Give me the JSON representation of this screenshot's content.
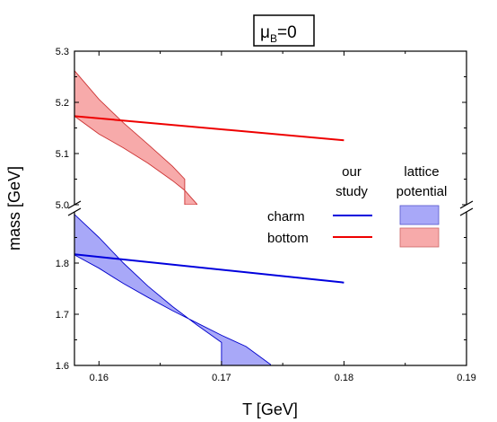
{
  "chart_data": {
    "type": "line",
    "title": "μ",
    "title_subscript": "B",
    "title_suffix": "=0",
    "xlabel": "T [GeV]",
    "ylabel": "mass [GeV]",
    "xlim": [
      0.158,
      0.19
    ],
    "x_ticks": [
      "0.16",
      "0.17",
      "0.18",
      "0.19"
    ],
    "x_tick_values": [
      0.16,
      0.17,
      0.18,
      0.19
    ],
    "ylim_upper": [
      5.0,
      5.3
    ],
    "ylim_lower": [
      1.6,
      1.9
    ],
    "axis_break": true,
    "y_ticks_upper": [
      "5.0",
      "5.1",
      "5.2",
      "5.3"
    ],
    "y_tick_values_upper": [
      5.0,
      5.1,
      5.2,
      5.3
    ],
    "y_ticks_lower": [
      "1.6",
      "1.7",
      "1.8"
    ],
    "y_tick_values_lower": [
      1.6,
      1.7,
      1.8
    ],
    "legend": {
      "header_col1": [
        "our",
        "study"
      ],
      "header_col2": [
        "lattice",
        "potential"
      ],
      "rows": [
        "charm",
        "bottom"
      ]
    },
    "series": [
      {
        "name": "charm",
        "source": "our study",
        "kind": "line",
        "color": "#0000dd",
        "x": [
          0.158,
          0.18
        ],
        "y": [
          1.817,
          1.762
        ]
      },
      {
        "name": "bottom",
        "source": "our study",
        "kind": "line",
        "color": "#ee0000",
        "x": [
          0.158,
          0.18
        ],
        "y": [
          5.173,
          5.126
        ]
      },
      {
        "name": "charm",
        "source": "lattice potential",
        "kind": "band",
        "color": "#0000cc",
        "fill": "#a8a8f8",
        "x": [
          0.158,
          0.16,
          0.162,
          0.164,
          0.166,
          0.168,
          0.17,
          0.172,
          0.174
        ],
        "y_upper": [
          1.895,
          1.85,
          1.8,
          1.755,
          1.715,
          1.679,
          1.645,
          null,
          null
        ],
        "y_lower": [
          1.816,
          1.79,
          1.76,
          1.733,
          1.707,
          1.683,
          1.659,
          1.637,
          1.602
        ]
      },
      {
        "name": "bottom",
        "source": "lattice potential",
        "kind": "band",
        "color": "#cc3333",
        "fill": "#f7aaaa",
        "x": [
          0.158,
          0.16,
          0.162,
          0.164,
          0.166,
          0.167,
          0.168
        ],
        "y_upper": [
          5.262,
          5.206,
          5.16,
          5.118,
          5.075,
          5.05,
          null
        ],
        "y_lower": [
          5.173,
          5.138,
          5.111,
          5.081,
          5.047,
          5.028,
          5.001
        ]
      }
    ]
  }
}
